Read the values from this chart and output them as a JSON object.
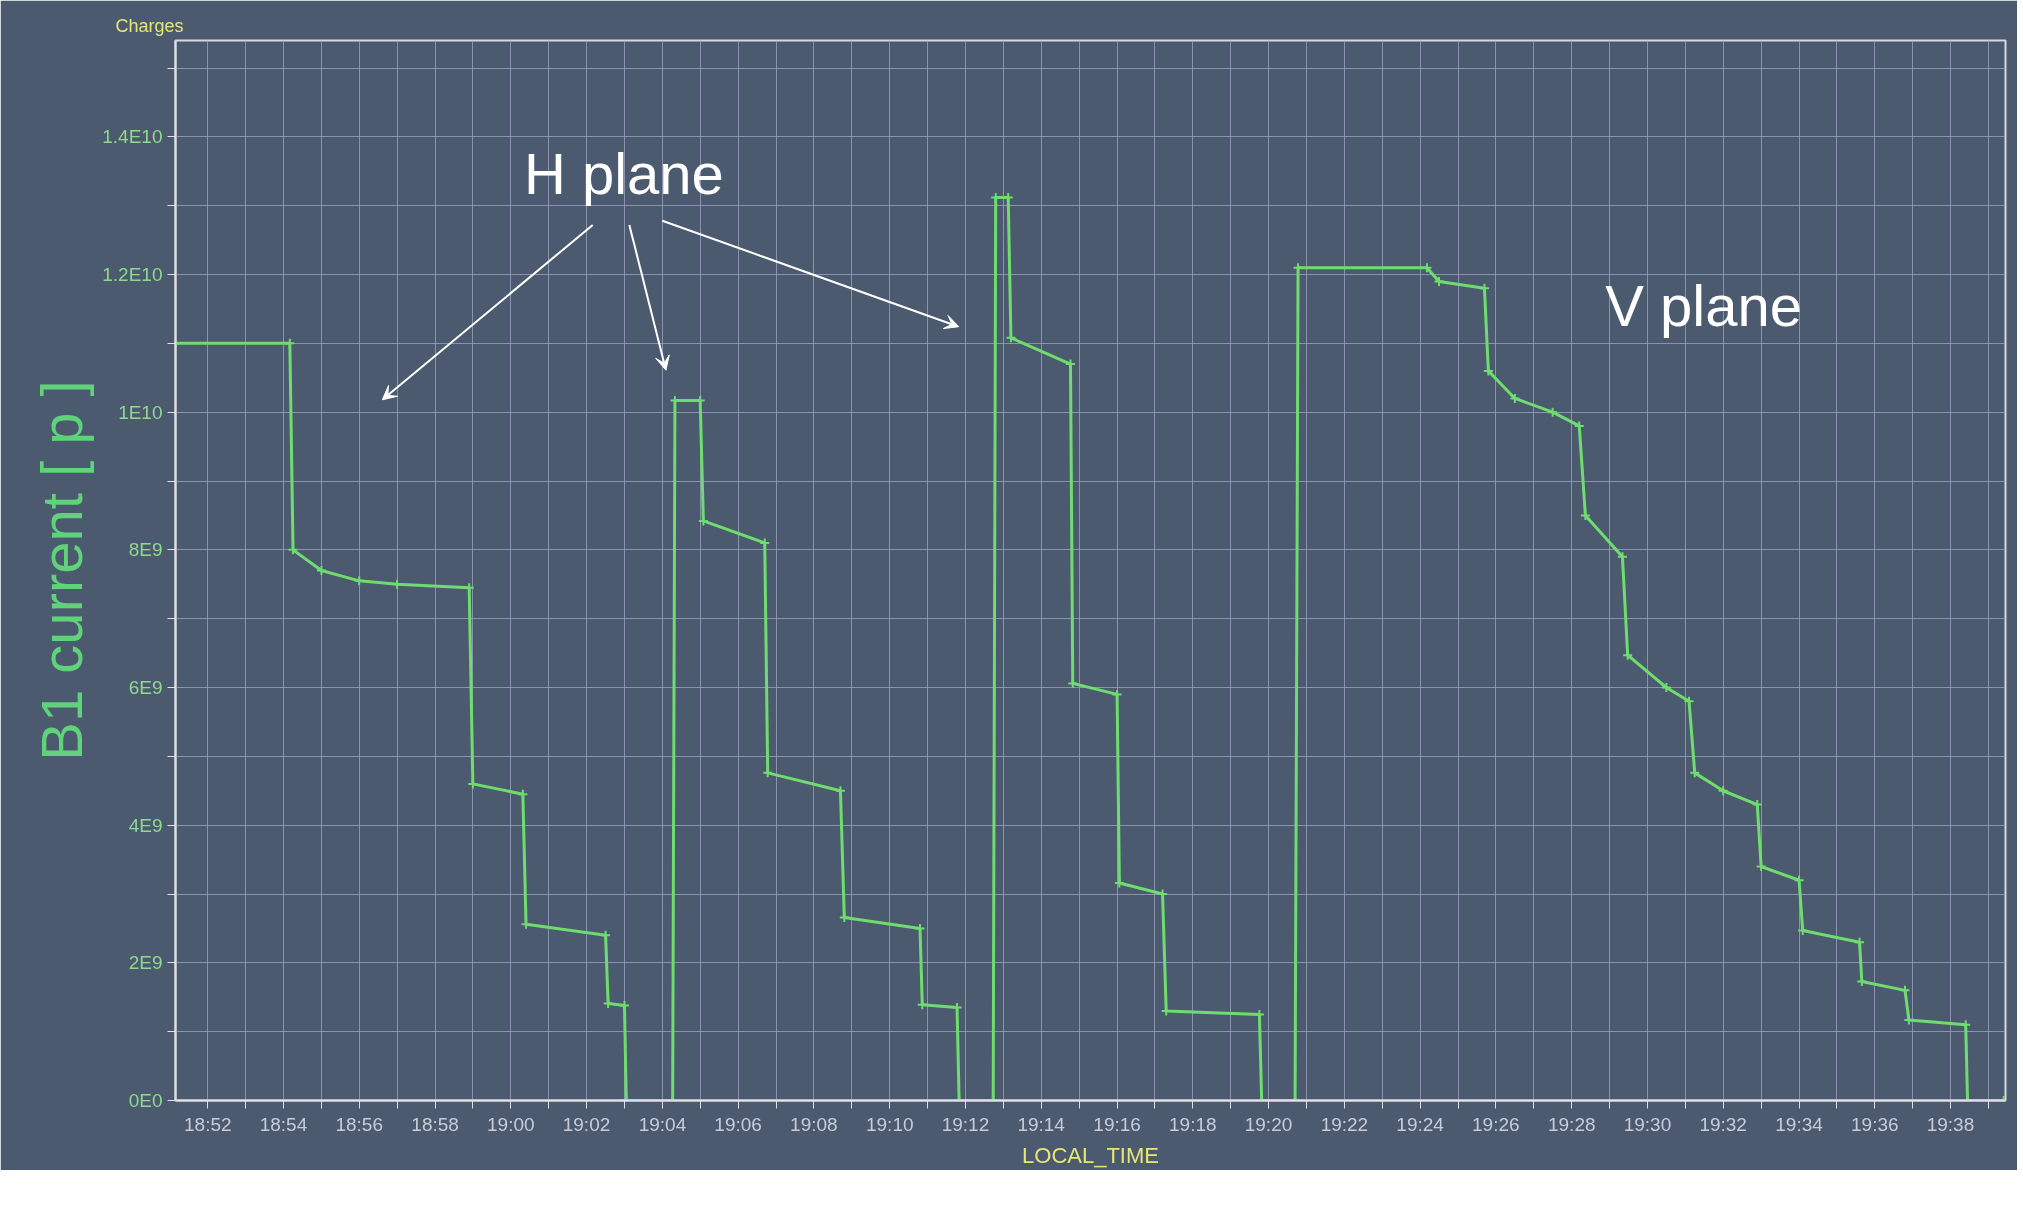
{
  "chart_data": {
    "type": "line",
    "title": "Charges",
    "xlabel": "LOCAL_TIME",
    "ylabel": "B1 current [ p ]",
    "annotations": [
      "H plane",
      "V plane"
    ],
    "x": [
      18.8525,
      18.9028,
      18.9042,
      18.9167,
      18.9333,
      18.95,
      18.9817,
      18.9833,
      19.0053,
      19.0067,
      19.0417,
      19.0428,
      19.05,
      19.0508,
      19.0712,
      19.0722,
      19.0833,
      19.0847,
      19.1117,
      19.113,
      19.145,
      19.1467,
      19.18,
      19.181,
      19.1963,
      19.1972,
      19.2122,
      19.2133,
      19.2188,
      19.22,
      19.2462,
      19.2472,
      19.2667,
      19.2677,
      19.2867,
      19.2883,
      19.3293,
      19.3303,
      19.345,
      19.3463,
      19.403,
      19.4083,
      19.4283,
      19.43,
      19.4417,
      19.4583,
      19.47,
      19.4727,
      19.489,
      19.4913,
      19.5083,
      19.5183,
      19.5208,
      19.5333,
      19.5483,
      19.55,
      19.5667,
      19.5683,
      19.5933,
      19.5943,
      19.6133,
      19.615,
      19.64,
      19.6408,
      19.6567
    ],
    "series": [
      {
        "color": "#6fdc6f",
        "values": [
          11000000000.0,
          11000000000.0,
          8000000000.0,
          7700000000.0,
          7550000000.0,
          7500000000.0,
          7450000000.0,
          4600000000.0,
          4450000000.0,
          2560000000.0,
          2400000000.0,
          1410000000.0,
          1380000000.0,
          0,
          0,
          10170000000.0,
          10170000000.0,
          8420000000.0,
          8100000000.0,
          4760000000.0,
          4500000000.0,
          2660000000.0,
          2500000000.0,
          1390000000.0,
          1350000000.0,
          0,
          0,
          13120000000.0,
          13120000000.0,
          11080000000.0,
          10700000000.0,
          6060000000.0,
          5900000000.0,
          3160000000.0,
          3000000000.0,
          1300000000.0,
          1250000000.0,
          0,
          0,
          12100000000.0,
          12100000000.0,
          11900000000.0,
          11800000000.0,
          10600000000.0,
          10200000000.0,
          10000000000.0,
          9800000000.0,
          8500000000.0,
          7900000000.0,
          6470000000.0,
          6000000000.0,
          5800000000.0,
          4760000000.0,
          4500000000.0,
          4300000000.0,
          3400000000.0,
          3200000000.0,
          2470000000.0,
          2300000000.0,
          1730000000.0,
          1600000000.0,
          1170000000.0,
          1100000000.0,
          0,
          0
        ]
      }
    ],
    "xlim": [
      18.8525,
      19.6575
    ],
    "ylim": [
      0,
      15400000000.0
    ],
    "xticks": [
      {
        "value": 18.8667,
        "label": "18:52"
      },
      {
        "value": 18.8833,
        "label": null
      },
      {
        "value": 18.9,
        "label": "18:54"
      },
      {
        "value": 18.9167,
        "label": null
      },
      {
        "value": 18.9333,
        "label": "18:56"
      },
      {
        "value": 18.95,
        "label": null
      },
      {
        "value": 18.9667,
        "label": "18:58"
      },
      {
        "value": 18.9833,
        "label": null
      },
      {
        "value": 19.0,
        "label": "19:00"
      },
      {
        "value": 19.0167,
        "label": null
      },
      {
        "value": 19.0333,
        "label": "19:02"
      },
      {
        "value": 19.05,
        "label": null
      },
      {
        "value": 19.0667,
        "label": "19:04"
      },
      {
        "value": 19.0833,
        "label": null
      },
      {
        "value": 19.1,
        "label": "19:06"
      },
      {
        "value": 19.1167,
        "label": null
      },
      {
        "value": 19.1333,
        "label": "19:08"
      },
      {
        "value": 19.15,
        "label": null
      },
      {
        "value": 19.1667,
        "label": "19:10"
      },
      {
        "value": 19.1833,
        "label": null
      },
      {
        "value": 19.2,
        "label": "19:12"
      },
      {
        "value": 19.2167,
        "label": null
      },
      {
        "value": 19.2333,
        "label": "19:14"
      },
      {
        "value": 19.25,
        "label": null
      },
      {
        "value": 19.2667,
        "label": "19:16"
      },
      {
        "value": 19.2833,
        "label": null
      },
      {
        "value": 19.3,
        "label": "19:18"
      },
      {
        "value": 19.3167,
        "label": null
      },
      {
        "value": 19.3333,
        "label": "19:20"
      },
      {
        "value": 19.35,
        "label": null
      },
      {
        "value": 19.3667,
        "label": "19:22"
      },
      {
        "value": 19.3833,
        "label": null
      },
      {
        "value": 19.4,
        "label": "19:24"
      },
      {
        "value": 19.4167,
        "label": null
      },
      {
        "value": 19.4333,
        "label": "19:26"
      },
      {
        "value": 19.45,
        "label": null
      },
      {
        "value": 19.4667,
        "label": "19:28"
      },
      {
        "value": 19.4833,
        "label": null
      },
      {
        "value": 19.5,
        "label": "19:30"
      },
      {
        "value": 19.5167,
        "label": null
      },
      {
        "value": 19.5333,
        "label": "19:32"
      },
      {
        "value": 19.55,
        "label": null
      },
      {
        "value": 19.5667,
        "label": "19:34"
      },
      {
        "value": 19.5833,
        "label": null
      },
      {
        "value": 19.6,
        "label": "19:36"
      },
      {
        "value": 19.6167,
        "label": null
      },
      {
        "value": 19.6333,
        "label": "19:38"
      },
      {
        "value": 19.65,
        "label": null
      }
    ],
    "yticks": [
      {
        "value": 0,
        "label": "0E0"
      },
      {
        "value": 1000000000.0,
        "label": null
      },
      {
        "value": 2000000000.0,
        "label": "2E9"
      },
      {
        "value": 3000000000.0,
        "label": null
      },
      {
        "value": 4000000000.0,
        "label": "4E9"
      },
      {
        "value": 5000000000.0,
        "label": null
      },
      {
        "value": 6000000000.0,
        "label": "6E9"
      },
      {
        "value": 7000000000.0,
        "label": null
      },
      {
        "value": 8000000000.0,
        "label": "8E9"
      },
      {
        "value": 9000000000.0,
        "label": null
      },
      {
        "value": 10000000000.0,
        "label": "1E10"
      },
      {
        "value": 11000000000.0,
        "label": null
      },
      {
        "value": 12000000000.0,
        "label": "1.2E10"
      },
      {
        "value": 13000000000.0,
        "label": null
      },
      {
        "value": 14000000000.0,
        "label": "1.4E10"
      },
      {
        "value": 15000000000.0,
        "label": null
      }
    ],
    "grid": true,
    "marker": "cross",
    "line_style": "solid"
  }
}
